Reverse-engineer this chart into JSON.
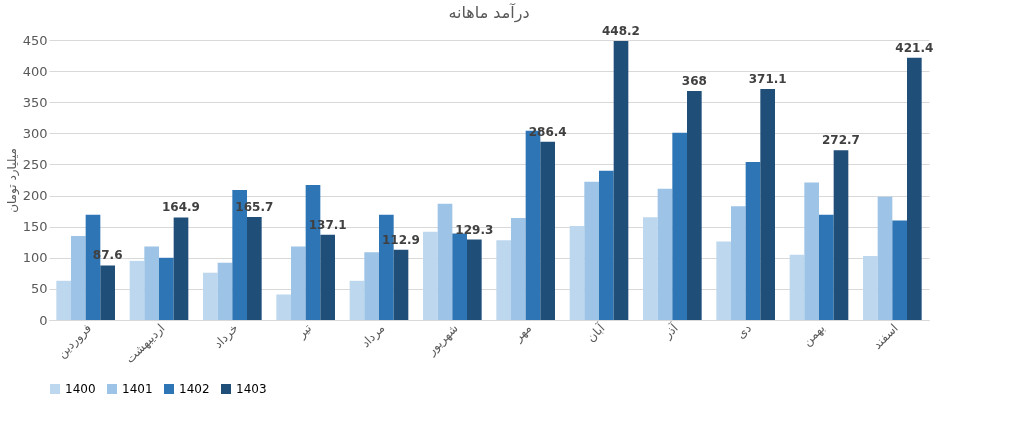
{
  "chart_data": {
    "type": "bar",
    "title": "درآمد ماهانه",
    "ylabel": "میلیارد تومان",
    "categories": [
      "فروردین",
      "اردیبهشت",
      "خرداد",
      "تیر",
      "مرداد",
      "شهریور",
      "مهر",
      "آبان",
      "آذر",
      "دی",
      "بهمن",
      "اسفند"
    ],
    "series": [
      {
        "name": "1400",
        "color": "#bdd7ee",
        "values": [
          63,
          95,
          76,
          41,
          63,
          142,
          128,
          151,
          165,
          126,
          105,
          103
        ]
      },
      {
        "name": "1401",
        "color": "#9dc3e6",
        "values": [
          135,
          118,
          92,
          118,
          109,
          187,
          164,
          222,
          211,
          183,
          221,
          198
        ]
      },
      {
        "name": "1402",
        "color": "#2e75b6",
        "values": [
          169,
          100,
          209,
          217,
          169,
          139,
          304,
          240,
          301,
          254,
          169,
          160
        ]
      },
      {
        "name": "1403",
        "color": "#1f4e79",
        "values": [
          87.6,
          164.9,
          165.7,
          137.1,
          112.9,
          129.3,
          286.4,
          448.2,
          368,
          371.1,
          272.7,
          421.4
        ],
        "value_labels": [
          "87.6",
          "164.9",
          "165.7",
          "137.1",
          "112.9",
          "129.3",
          "286.4",
          "448.2",
          "368",
          "371.1",
          "272.7",
          "421.4"
        ]
      }
    ],
    "ylim": [
      0,
      450
    ],
    "yticks": [
      0,
      50,
      100,
      150,
      200,
      250,
      300,
      350,
      400,
      450
    ],
    "grid": "y",
    "legend": "bottom"
  }
}
